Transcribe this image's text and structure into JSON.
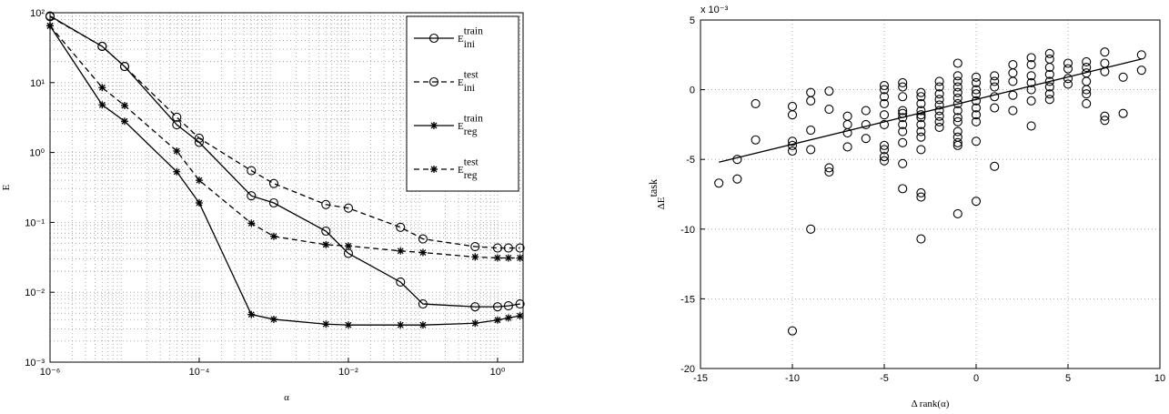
{
  "chart_data": [
    {
      "type": "line",
      "xscale": "log",
      "yscale": "log",
      "grid": true,
      "minor_grid": true,
      "xlabel": "α",
      "ylabel": "E",
      "legend": "upper right",
      "xlim": [
        1e-06,
        2.2
      ],
      "ylim": [
        0.001,
        100
      ],
      "xticks": [
        {
          "value": 1e-06,
          "label": "10⁻⁶"
        },
        {
          "value": 0.0001,
          "label": "10⁻⁴"
        },
        {
          "value": 0.01,
          "label": "10⁻²"
        },
        {
          "value": 1,
          "label": "10⁰"
        }
      ],
      "yticks": [
        {
          "value": 0.001,
          "label": "10⁻³"
        },
        {
          "value": 0.01,
          "label": "10⁻²"
        },
        {
          "value": 0.1,
          "label": "10⁻¹"
        },
        {
          "value": 1,
          "label": "10⁰"
        },
        {
          "value": 10,
          "label": "10¹"
        },
        {
          "value": 100,
          "label": "10²"
        }
      ],
      "x": [
        1e-06,
        5e-06,
        1e-05,
        5e-05,
        0.0001,
        0.0005,
        0.001,
        0.005,
        0.01,
        0.05,
        0.1,
        0.5,
        1,
        1.4,
        2
      ],
      "series": [
        {
          "name": "E_ini^train",
          "color": "#000000",
          "dashed": false,
          "marker": "circle",
          "values": [
            90,
            33,
            17,
            2.5,
            1.4,
            0.24,
            0.19,
            0.075,
            0.036,
            0.014,
            0.0068,
            0.0062,
            0.0062,
            0.0064,
            0.0068
          ]
        },
        {
          "name": "E_ini^test",
          "color": "#000000",
          "dashed": true,
          "marker": "circle",
          "values": [
            88,
            33,
            17,
            3.2,
            1.6,
            0.55,
            0.36,
            0.18,
            0.16,
            0.085,
            0.058,
            0.045,
            0.043,
            0.043,
            0.043
          ]
        },
        {
          "name": "E_reg^train",
          "color": "#000000",
          "dashed": false,
          "marker": "star",
          "values": [
            65,
            4.8,
            2.8,
            0.53,
            0.19,
            0.0048,
            0.0041,
            0.0035,
            0.0034,
            0.0034,
            0.0034,
            0.0036,
            0.004,
            0.0043,
            0.0046
          ]
        },
        {
          "name": "E_reg^test",
          "color": "#000000",
          "dashed": true,
          "marker": "star",
          "values": [
            65,
            8.5,
            4.7,
            1.05,
            0.4,
            0.097,
            0.063,
            0.048,
            0.046,
            0.039,
            0.037,
            0.032,
            0.031,
            0.031,
            0.031
          ]
        }
      ]
    },
    {
      "type": "scatter",
      "grid": true,
      "xlabel": "Δ rank(α)",
      "ylabel": "ΔE^task",
      "multiplier_label": "x 10⁻³",
      "xlim": [
        -15,
        10
      ],
      "ylim": [
        -20,
        5
      ],
      "xticks": [
        -15,
        -10,
        -5,
        0,
        5,
        10
      ],
      "yticks": [
        -20,
        -15,
        -10,
        -5,
        0,
        5
      ],
      "color": "#000000",
      "x": [
        -14,
        -13,
        -13,
        -12,
        -12,
        -10,
        -10,
        -10,
        -10,
        -10,
        -10,
        -9,
        -9,
        -9,
        -9,
        -9,
        -8,
        -8,
        -8,
        -8,
        -7,
        -7,
        -7,
        -7,
        -6,
        -6,
        -6,
        -5,
        -5,
        -5,
        -5,
        -5,
        -5,
        -5,
        -5,
        -5,
        -5,
        -4,
        -4,
        -4,
        -4,
        -4,
        -4,
        -4,
        -4,
        -4,
        -4,
        -4,
        -3,
        -3,
        -3,
        -3,
        -3,
        -3,
        -3,
        -3,
        -3,
        -3,
        -3,
        -3,
        -3,
        -2,
        -2,
        -2,
        -2,
        -2,
        -2,
        -2,
        -2,
        -2,
        -1,
        -1,
        -1,
        -1,
        -1,
        -1,
        -1,
        -1,
        -1,
        -1,
        -1,
        -1,
        -1,
        -1,
        -1,
        0,
        0,
        0,
        0,
        0,
        0,
        0,
        0,
        0,
        0,
        1,
        1,
        1,
        1,
        1,
        1,
        2,
        2,
        2,
        2,
        2,
        3,
        3,
        3,
        3,
        3,
        3,
        3,
        4,
        4,
        4,
        4,
        4,
        4,
        4,
        4,
        5,
        5,
        5,
        5,
        6,
        6,
        6,
        6,
        6,
        6,
        6,
        7,
        7,
        7,
        7,
        7,
        8,
        8,
        9,
        9
      ],
      "values": [
        -6.7,
        -5,
        -6.4,
        -1,
        -3.6,
        -1.2,
        -1.8,
        -3.7,
        -4,
        -4.4,
        -17.3,
        -0.2,
        -0.8,
        -2.9,
        -4.3,
        -10,
        -0.1,
        -1.4,
        -5.6,
        -5.9,
        -1.9,
        -2.5,
        -3.1,
        -4.1,
        -1.5,
        -2.5,
        -3.5,
        0.3,
        0,
        -0.5,
        -1,
        -1.8,
        -2.5,
        -4,
        -4.3,
        -4.8,
        -5.1,
        0.5,
        0.2,
        -0.5,
        -1.5,
        -1.7,
        -2,
        -2.5,
        -3,
        -3.8,
        -5.3,
        -7.1,
        -0.2,
        -0.5,
        -1,
        -1.5,
        -1.8,
        -2,
        -2.5,
        -3,
        -3.4,
        -4.3,
        -7.4,
        -7.7,
        -10.7,
        0.6,
        0.2,
        -0.3,
        -0.7,
        -1.1,
        -1.5,
        -1.9,
        -2.3,
        -2.7,
        1.9,
        1,
        0.6,
        0.2,
        -0.2,
        -0.6,
        -1,
        -1.5,
        -2,
        -2.3,
        -3,
        -3.4,
        -3.8,
        -4,
        -8.9,
        0.9,
        0.5,
        0,
        -0.3,
        -0.8,
        -1.3,
        -1.8,
        -2.3,
        -3.7,
        -8,
        1,
        0.6,
        0.2,
        -0.5,
        -1.3,
        -5.5,
        1.8,
        1.2,
        0.6,
        -0.4,
        -1.5,
        2.3,
        1.8,
        1,
        0.5,
        0,
        -0.8,
        -2.6,
        2.6,
        2.2,
        1.6,
        1.1,
        0.6,
        0.2,
        -0.3,
        -0.7,
        1.9,
        1.5,
        0.8,
        0.4,
        2,
        1.6,
        1.2,
        0.6,
        0,
        -0.3,
        -1,
        2.7,
        1.9,
        1.3,
        -1.9,
        -2.2,
        0.9,
        -1.7,
        2.5,
        1.4
      ],
      "fit_line": {
        "x": [
          -14,
          9
        ],
        "values": [
          -5.2,
          2.2
        ]
      }
    }
  ]
}
